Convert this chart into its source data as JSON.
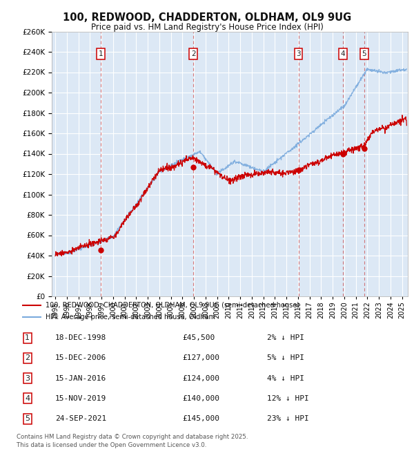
{
  "title": "100, REDWOOD, CHADDERTON, OLDHAM, OL9 9UG",
  "subtitle": "Price paid vs. HM Land Registry's House Price Index (HPI)",
  "ylim": [
    0,
    260000
  ],
  "ytick_step": 20000,
  "xlim_start": 1994.7,
  "xlim_end": 2025.5,
  "xticks": [
    1995,
    1996,
    1997,
    1998,
    1999,
    2000,
    2001,
    2002,
    2003,
    2004,
    2005,
    2006,
    2007,
    2008,
    2009,
    2010,
    2011,
    2012,
    2013,
    2014,
    2015,
    2016,
    2017,
    2018,
    2019,
    2020,
    2021,
    2022,
    2023,
    2024,
    2025
  ],
  "bg_color": "#dce8f5",
  "grid_color": "#ffffff",
  "line_price_color": "#cc0000",
  "line_hpi_color": "#7aaadd",
  "sales": [
    {
      "num": 1,
      "year": 1998.96,
      "price": 45500,
      "hpi_pct": 2
    },
    {
      "num": 2,
      "year": 2006.96,
      "price": 127000,
      "hpi_pct": 5
    },
    {
      "num": 3,
      "year": 2016.04,
      "price": 124000,
      "hpi_pct": 4
    },
    {
      "num": 4,
      "year": 2019.88,
      "price": 140000,
      "hpi_pct": 12
    },
    {
      "num": 5,
      "year": 2021.73,
      "price": 145000,
      "hpi_pct": 23
    }
  ],
  "sales_display": [
    {
      "num": 1,
      "date": "18-DEC-1998",
      "price": "£45,500",
      "pct": "2% ↓ HPI"
    },
    {
      "num": 2,
      "date": "15-DEC-2006",
      "price": "£127,000",
      "pct": "5% ↓ HPI"
    },
    {
      "num": 3,
      "date": "15-JAN-2016",
      "price": "£124,000",
      "pct": "4% ↓ HPI"
    },
    {
      "num": 4,
      "date": "15-NOV-2019",
      "price": "£140,000",
      "pct": "12% ↓ HPI"
    },
    {
      "num": 5,
      "date": "24-SEP-2021",
      "price": "£145,000",
      "pct": "23% ↓ HPI"
    }
  ],
  "legend_price": "100, REDWOOD, CHADDERTON, OLDHAM, OL9 9UG (semi-detached house)",
  "legend_hpi": "HPI: Average price, semi-detached house, Oldham",
  "footnote": "Contains HM Land Registry data © Crown copyright and database right 2025.\nThis data is licensed under the Open Government Licence v3.0.",
  "marker_box_color": "#cc0000",
  "dashed_line_color": "#cc0000"
}
